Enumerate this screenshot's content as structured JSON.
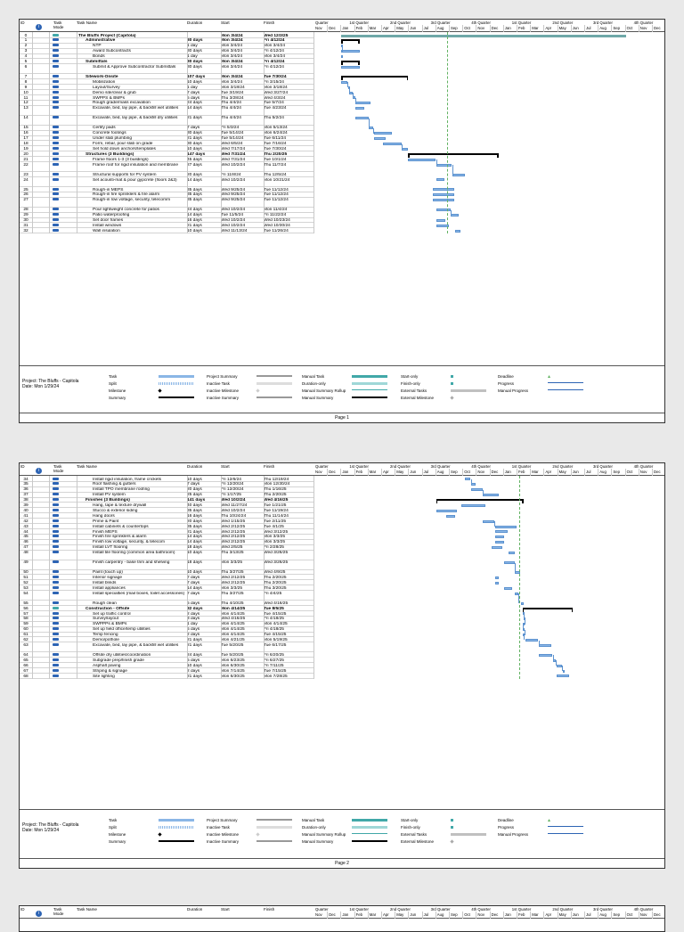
{
  "columns": {
    "id": "ID",
    "mode": "Task Mode",
    "name": "Task Name",
    "duration": "Duration",
    "start": "Start",
    "finish": "Finish"
  },
  "timeline": {
    "quarters": [
      "Quarter",
      "1st Quarter",
      "2nd Quarter",
      "3rd Quarter",
      "4th Quarter",
      "1st Quarter",
      "2nd Quarter",
      "3rd Quarter",
      "4th Quarter"
    ],
    "months": [
      "Nov",
      "Dec",
      "Jan",
      "Feb",
      "Mar",
      "Apr",
      "May",
      "Jun",
      "Jul",
      "Aug",
      "Sep",
      "Oct",
      "Nov",
      "Dec",
      "Jan",
      "Feb",
      "Mar",
      "Apr",
      "May",
      "Jun",
      "Jul",
      "Aug",
      "Sep",
      "Oct",
      "Nov",
      "Dec"
    ]
  },
  "page1": {
    "rows": [
      {
        "id": "0",
        "name": "The Bluffs Project (Capitola)",
        "duration": "",
        "start": "Mon 3/4/24",
        "finish": "Wed 12/3/25",
        "type": "project",
        "s": 11.05,
        "f": 32.1
      },
      {
        "id": "1",
        "name": "Administrative",
        "duration": "30 days",
        "start": "Mon 3/4/24",
        "finish": "Fri 4/12/24",
        "type": "summary",
        "s": 11.05,
        "f": 12.4
      },
      {
        "id": "2",
        "name": "NTP",
        "duration": "1 day",
        "start": "Mon 3/4/24",
        "finish": "Mon 3/4/24",
        "type": "task",
        "s": 11.05,
        "f": 11.1
      },
      {
        "id": "3",
        "name": "Award Subcontracts",
        "duration": "30 days",
        "start": "Mon 3/4/24",
        "finish": "Fri 4/12/24",
        "type": "task",
        "s": 11.05,
        "f": 12.4
      },
      {
        "id": "4",
        "name": "Bonds",
        "duration": "1 day",
        "start": "Mon 3/4/24",
        "finish": "Mon 3/4/24",
        "type": "task",
        "s": 11.05,
        "f": 11.1
      },
      {
        "id": "5",
        "name": "Submittals",
        "duration": "30 days",
        "start": "Mon 3/4/24",
        "finish": "Fri 4/12/24",
        "type": "summary",
        "s": 11.05,
        "f": 12.4
      },
      {
        "id": "6",
        "name": "Submit & Approve Subcontractor Submittals",
        "duration": "30 days",
        "start": "Mon 3/4/24",
        "finish": "Fri 4/12/24",
        "type": "task",
        "s": 11.05,
        "f": 12.4,
        "tall": true
      },
      {
        "id": "7",
        "name": "Sitework-Onsite",
        "duration": "107 days",
        "start": "Mon 3/4/24",
        "finish": "Tue 7/30/24",
        "type": "summary",
        "s": 11.05,
        "f": 15.97
      },
      {
        "id": "8",
        "name": "Mobilization",
        "duration": "10 days",
        "start": "Mon 3/4/24",
        "finish": "Fri 3/15/24",
        "type": "task",
        "s": 11.05,
        "f": 11.48
      },
      {
        "id": "9",
        "name": "Layout/Survey",
        "duration": "1 day",
        "start": "Mon 3/18/24",
        "finish": "Mon 3/18/24",
        "type": "task",
        "s": 11.55,
        "f": 11.6
      },
      {
        "id": "10",
        "name": "Demo site/clear & grub",
        "duration": "7 days",
        "start": "Tue 3/19/24",
        "finish": "Wed 3/27/24",
        "type": "task",
        "s": 11.6,
        "f": 11.9
      },
      {
        "id": "11",
        "name": "SWPPS & BMPs",
        "duration": "5 days",
        "start": "Thu 3/28/24",
        "finish": "Wed 4/3/24",
        "type": "task",
        "s": 11.9,
        "f": 12.1
      },
      {
        "id": "12",
        "name": "Rough grade/mass excavation",
        "duration": "24 days",
        "start": "Thu 4/4/24",
        "finish": "Tue 5/7/24",
        "type": "task",
        "s": 12.1,
        "f": 13.23
      },
      {
        "id": "13",
        "name": "Excavate, bed, lay pipe, & backfill wet utilities",
        "duration": "14 days",
        "start": "Thu 4/4/24",
        "finish": "Tue 4/23/24",
        "type": "task",
        "s": 12.1,
        "f": 12.75,
        "tall": true
      },
      {
        "id": "14",
        "name": "Excavate, bed, lay pipe, & backfill dry utilities",
        "duration": "21 days",
        "start": "Thu 4/4/24",
        "finish": "Thu 5/2/24",
        "type": "task",
        "s": 12.1,
        "f": 13.06,
        "tall": true
      },
      {
        "id": "15",
        "name": "Certify pads",
        "duration": "7 days",
        "start": "Fri 5/3/24",
        "finish": "Mon 5/13/24",
        "type": "task",
        "s": 13.1,
        "f": 13.42
      },
      {
        "id": "16",
        "name": "Concrete footings",
        "duration": "30 days",
        "start": "Tue 5/14/24",
        "finish": "Mon 6/24/24",
        "type": "task",
        "s": 13.45,
        "f": 14.8
      },
      {
        "id": "17",
        "name": "Under slab plumbing",
        "duration": "21 days",
        "start": "Tue 5/14/24",
        "finish": "Tue 6/11/24",
        "type": "task",
        "s": 13.45,
        "f": 14.36
      },
      {
        "id": "18",
        "name": "Form, rebar, pour slab on grade",
        "duration": "30 days",
        "start": "Wed 6/5/24",
        "finish": "Tue 7/16/24",
        "type": "task",
        "s": 14.15,
        "f": 15.5
      },
      {
        "id": "19",
        "name": "Set hold down anchors/templates",
        "duration": "10 days",
        "start": "Wed 7/17/24",
        "finish": "Tue 7/30/24",
        "type": "task",
        "s": 15.53,
        "f": 15.97
      },
      {
        "id": "20",
        "name": "Structures (3 Buildings)",
        "duration": "147 days",
        "start": "Wed 7/31/24",
        "finish": "Thu 2/20/25",
        "type": "summary",
        "s": 16.0,
        "f": 22.67
      },
      {
        "id": "21",
        "name": "Frame floors 1-3 (3 buildings)",
        "duration": "45 days",
        "start": "Wed 7/31/24",
        "finish": "Tue 10/1/24",
        "type": "task",
        "s": 16.0,
        "f": 18.03
      },
      {
        "id": "22",
        "name": "Frame roof for rigid insulation and membrane",
        "duration": "27 days",
        "start": "Wed 10/2/24",
        "finish": "Thu 11/7/24",
        "type": "task",
        "s": 18.06,
        "f": 19.23,
        "tall": true
      },
      {
        "id": "23",
        "name": "Structural supports for PV system",
        "duration": "20 days",
        "start": "Fri 11/8/24",
        "finish": "Thu 12/5/24",
        "type": "task",
        "s": 19.26,
        "f": 20.16
      },
      {
        "id": "24",
        "name": "Set acousti-mat & pour gypcrete (floors 2&3)",
        "duration": "14 days",
        "start": "Wed 10/2/24",
        "finish": "Mon 10/21/24",
        "type": "task",
        "s": 18.06,
        "f": 18.68,
        "tall": true
      },
      {
        "id": "25",
        "name": "Rough-in MEPS",
        "duration": "35 days",
        "start": "Wed 9/25/24",
        "finish": "Tue 11/12/24",
        "type": "task",
        "s": 17.8,
        "f": 19.4
      },
      {
        "id": "26",
        "name": "Rough-in fire sprinklers & fire alarm",
        "duration": "35 days",
        "start": "Wed 9/25/24",
        "finish": "Tue 11/12/24",
        "type": "task",
        "s": 17.8,
        "f": 19.4
      },
      {
        "id": "27",
        "name": "Rough-in low voltage, security, telecomm",
        "duration": "35 days",
        "start": "Wed 9/25/24",
        "finish": "Tue 11/12/24",
        "type": "task",
        "s": 17.8,
        "f": 19.4,
        "tall": true
      },
      {
        "id": "28",
        "name": "Pour lightweight concrete for patios",
        "duration": "24 days",
        "start": "Wed 10/2/24",
        "finish": "Mon 11/4/24",
        "type": "task",
        "s": 18.06,
        "f": 19.13
      },
      {
        "id": "29",
        "name": "Patio waterproofing",
        "duration": "14 days",
        "start": "Tue 11/5/24",
        "finish": "Fri 11/22/24",
        "type": "task",
        "s": 19.16,
        "f": 19.73
      },
      {
        "id": "30",
        "name": "Set door frames",
        "duration": "16 days",
        "start": "Wed 10/2/24",
        "finish": "Wed 10/23/24",
        "type": "task",
        "s": 18.06,
        "f": 18.75
      },
      {
        "id": "31",
        "name": "Install windows",
        "duration": "21 days",
        "start": "Wed 10/2/24",
        "finish": "Wed 10/30/24",
        "type": "task",
        "s": 18.06,
        "f": 18.97
      },
      {
        "id": "32",
        "name": "Wall insulation",
        "duration": "10 days",
        "start": "Wed 11/13/24",
        "finish": "Tue 11/26/24",
        "type": "task",
        "s": 19.43,
        "f": 19.86
      }
    ],
    "page_label": "Page 1"
  },
  "page2": {
    "rows": [
      {
        "id": "34",
        "name": "Install rigid insulation, frame crickets",
        "duration": "10 days",
        "start": "Fri 12/6/24",
        "finish": "Thu 12/19/24",
        "type": "task",
        "s": 20.18,
        "f": 20.6
      },
      {
        "id": "35",
        "name": "Roof flashing & gutters",
        "duration": "7 days",
        "start": "Fri 12/20/24",
        "finish": "Mon 12/30/24",
        "type": "task",
        "s": 20.63,
        "f": 20.96
      },
      {
        "id": "36",
        "name": "Install TPO membrane roofing",
        "duration": "20 days",
        "start": "Fri 12/20/24",
        "finish": "Thu 1/16/25",
        "type": "task",
        "s": 20.63,
        "f": 21.5
      },
      {
        "id": "37",
        "name": "Install PV system",
        "duration": "25 days",
        "start": "Fri 1/17/25",
        "finish": "Thu 2/20/25",
        "type": "task",
        "s": 21.53,
        "f": 22.67
      },
      {
        "id": "38",
        "name": "Finishes (3 Buildings)",
        "duration": "141 days",
        "start": "Wed 10/2/24",
        "finish": "Wed 4/16/25",
        "type": "summary",
        "s": 18.06,
        "f": 24.5
      },
      {
        "id": "39",
        "name": "Hang, tape & texture drywall",
        "duration": "40 days",
        "start": "Wed 11/27/24",
        "finish": "Tue 1/21/25",
        "type": "task",
        "s": 19.9,
        "f": 21.67
      },
      {
        "id": "40",
        "name": "Stucco & exterior siding",
        "duration": "35 days",
        "start": "Wed 10/2/24",
        "finish": "Tue 11/19/24",
        "type": "task",
        "s": 18.06,
        "f": 19.62
      },
      {
        "id": "41",
        "name": "Hang doors",
        "duration": "16 days",
        "start": "Thu 10/24/24",
        "finish": "Thu 11/14/24",
        "type": "task",
        "s": 18.78,
        "f": 19.46
      },
      {
        "id": "42",
        "name": "Prime & Paint",
        "duration": "20 days",
        "start": "Wed 1/15/25",
        "finish": "Tue 2/11/25",
        "type": "task",
        "s": 21.47,
        "f": 22.36
      },
      {
        "id": "43",
        "name": "Install cabinets & countertops",
        "duration": "35 days",
        "start": "Wed 2/12/25",
        "finish": "Tue 4/1/25",
        "type": "task",
        "s": 22.4,
        "f": 24.0
      },
      {
        "id": "44",
        "name": "Finish MEPS",
        "duration": "21 days",
        "start": "Wed 2/12/25",
        "finish": "Wed 3/12/25",
        "type": "task",
        "s": 22.4,
        "f": 23.36
      },
      {
        "id": "45",
        "name": "Finish fire sprinklers & alarm",
        "duration": "14 days",
        "start": "Wed 2/12/25",
        "finish": "Mon 3/3/25",
        "type": "task",
        "s": 22.4,
        "f": 23.06
      },
      {
        "id": "46",
        "name": "Finish low voltage, security, & telecom",
        "duration": "14 days",
        "start": "Wed 2/12/25",
        "finish": "Mon 3/3/25",
        "type": "task",
        "s": 22.4,
        "f": 23.06
      },
      {
        "id": "47",
        "name": "Install LVT flooring",
        "duration": "18 days",
        "start": "Wed 2/5/25",
        "finish": "Fri 2/28/25",
        "type": "task",
        "s": 22.16,
        "f": 22.96
      },
      {
        "id": "48",
        "name": "Install tile flooring (common area bathroom)",
        "duration": "10 days",
        "start": "Thu 3/13/25",
        "finish": "Wed 3/26/25",
        "type": "task",
        "s": 23.4,
        "f": 23.84,
        "tall": true
      },
      {
        "id": "49",
        "name": "Finish carpentry - base trim and shelving",
        "duration": "18 days",
        "start": "Mon 3/3/25",
        "finish": "Wed 3/26/25",
        "type": "task",
        "s": 23.06,
        "f": 23.84,
        "tall": true
      },
      {
        "id": "50",
        "name": "Paint (touch up)",
        "duration": "10 days",
        "start": "Thu 3/27/25",
        "finish": "Wed 4/9/25",
        "type": "task",
        "s": 23.87,
        "f": 24.28
      },
      {
        "id": "51",
        "name": "Interior signage",
        "duration": "7 days",
        "start": "Wed 2/12/25",
        "finish": "Thu 2/20/25",
        "type": "task",
        "s": 22.4,
        "f": 22.67
      },
      {
        "id": "52",
        "name": "Install blinds",
        "duration": "7 days",
        "start": "Wed 2/12/25",
        "finish": "Thu 2/20/25",
        "type": "task",
        "s": 22.4,
        "f": 22.67
      },
      {
        "id": "53",
        "name": "Install appliances",
        "duration": "14 days",
        "start": "Mon 3/3/25",
        "finish": "Thu 3/20/25",
        "type": "task",
        "s": 23.06,
        "f": 23.65
      },
      {
        "id": "54",
        "name": "Install specialties (mail boxes, toilet accessories)",
        "duration": "7 days",
        "start": "Thu 3/27/25",
        "finish": "Fri 4/4/25",
        "type": "task",
        "s": 23.87,
        "f": 24.13,
        "tall": true
      },
      {
        "id": "55",
        "name": "Rough clean",
        "duration": "5 days",
        "start": "Thu 4/10/25",
        "finish": "Wed 4/16/25",
        "type": "task",
        "s": 24.32,
        "f": 24.5
      },
      {
        "id": "56",
        "name": "Construction - Offsite",
        "duration": "82 days",
        "start": "Mon 4/14/25",
        "finish": "Tue 8/5/25",
        "type": "summary",
        "s": 24.43,
        "f": 28.15,
        "manual": true
      },
      {
        "id": "57",
        "name": "Set up traffic control",
        "duration": "2 days",
        "start": "Mon 4/14/25",
        "finish": "Tue 4/15/25",
        "type": "task",
        "s": 24.43,
        "f": 24.5
      },
      {
        "id": "58",
        "name": "Survey/layout",
        "duration": "3 days",
        "start": "Wed 4/16/25",
        "finish": "Fri 4/18/25",
        "type": "task",
        "s": 24.5,
        "f": 24.6
      },
      {
        "id": "59",
        "name": "SWPPPs & BMPs",
        "duration": "1 day",
        "start": "Mon 4/14/25",
        "finish": "Mon 4/14/25",
        "type": "task",
        "s": 24.43,
        "f": 24.46
      },
      {
        "id": "60",
        "name": "Set up field office/temp utilities",
        "duration": "5 days",
        "start": "Mon 4/14/25",
        "finish": "Fri 4/18/25",
        "type": "task",
        "s": 24.43,
        "f": 24.6
      },
      {
        "id": "61",
        "name": "Temp fencing",
        "duration": "2 days",
        "start": "Mon 4/14/25",
        "finish": "Tue 4/15/25",
        "type": "task",
        "s": 24.43,
        "f": 24.5
      },
      {
        "id": "62",
        "name": "Demo/pothole",
        "duration": "21 days",
        "start": "Mon 4/21/25",
        "finish": "Mon 5/19/25",
        "type": "task",
        "s": 24.66,
        "f": 25.6
      },
      {
        "id": "63",
        "name": "Excavate, bed, lay pipe, & backfill wet utilities",
        "duration": "21 days",
        "start": "Tue 5/20/25",
        "finish": "Tue 6/17/25",
        "type": "task",
        "s": 25.63,
        "f": 26.55,
        "tall": true
      },
      {
        "id": "64",
        "name": "Offsite dry utilities/coordination",
        "duration": "24 days",
        "start": "Tue 5/20/25",
        "finish": "Fri 6/20/25",
        "type": "task",
        "s": 25.63,
        "f": 26.65
      },
      {
        "id": "65",
        "name": "Subgrade prep/finish grade",
        "duration": "5 days",
        "start": "Mon 6/23/25",
        "finish": "Fri 6/27/25",
        "type": "task",
        "s": 26.73,
        "f": 26.9
      },
      {
        "id": "66",
        "name": "Asphalt paving",
        "duration": "10 days",
        "start": "Mon 6/30/25",
        "finish": "Fri 7/11/25",
        "type": "task",
        "s": 26.97,
        "f": 27.36
      },
      {
        "id": "67",
        "name": "Striping & signage",
        "duration": "2 days",
        "start": "Mon 7/14/25",
        "finish": "Tue 7/15/25",
        "type": "task",
        "s": 27.43,
        "f": 27.5
      },
      {
        "id": "68",
        "name": "Site lighting",
        "duration": "21 days",
        "start": "Mon 6/30/25",
        "finish": "Mon 7/28/25",
        "type": "task",
        "s": 26.97,
        "f": 27.9
      }
    ],
    "page_label": "Page 2"
  },
  "legend": {
    "project": "Project: The Bluffs - Capitola",
    "date": "Date: Mon 1/29/24",
    "items": [
      {
        "label": "Task",
        "kind": "task"
      },
      {
        "label": "Split",
        "kind": "split"
      },
      {
        "label": "Milestone",
        "kind": "milestone"
      },
      {
        "label": "Summary",
        "kind": "summary"
      },
      {
        "label": "Project Summary",
        "kind": "projsum"
      },
      {
        "label": "Inactive Task",
        "kind": "inactive"
      },
      {
        "label": "Inactive Milestone",
        "kind": "inactivems"
      },
      {
        "label": "Inactive Summary",
        "kind": "inactivesum"
      },
      {
        "label": "Manual Task",
        "kind": "manual"
      },
      {
        "label": "Duration-only",
        "kind": "duration"
      },
      {
        "label": "Manual Summary Rollup",
        "kind": "rollup"
      },
      {
        "label": "Manual Summary",
        "kind": "manualsum"
      },
      {
        "label": "Start-only",
        "kind": "startonly"
      },
      {
        "label": "Finish-only",
        "kind": "finishonly"
      },
      {
        "label": "External Tasks",
        "kind": "external"
      },
      {
        "label": "External Milestone",
        "kind": "externalms"
      },
      {
        "label": "Deadline",
        "kind": "deadline"
      },
      {
        "label": "Progress",
        "kind": "progress"
      },
      {
        "label": "Manual Progress",
        "kind": "manualprogress"
      }
    ],
    "colors": {
      "task": "#8ab6e6",
      "summary": "#000000",
      "project": "#6ea8a8",
      "manual": "#41a8a8",
      "external": "#c0c0c0",
      "deadline": "#62b262"
    }
  },
  "page3": {
    "first_id": "ID",
    "first_mode": "Task",
    "first_name": "Task Name",
    "first_dur": "Duration",
    "first_start": "Start",
    "first_fin": "Finish"
  }
}
